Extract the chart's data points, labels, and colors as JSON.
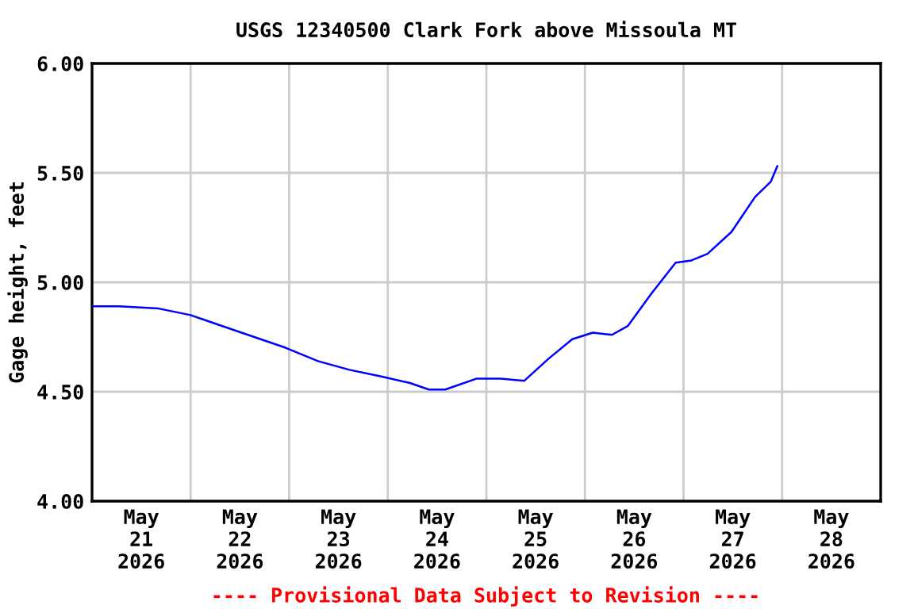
{
  "chart_data": {
    "type": "line",
    "title": "USGS 12340500 Clark Fork above Missoula MT",
    "ylabel": "Gage height, feet",
    "x": [
      "2026-05-21T00:00",
      "2026-05-21T06:30",
      "2026-05-21T16:15",
      "2026-05-22T00:00",
      "2026-05-22T07:45",
      "2026-05-22T15:30",
      "2026-05-22T23:15",
      "2026-05-23T07:00",
      "2026-05-23T14:40",
      "2026-05-23T22:25",
      "2026-05-24T05:25",
      "2026-05-24T10:00",
      "2026-05-24T14:00",
      "2026-05-24T21:40",
      "2026-05-25T03:30",
      "2026-05-25T09:15",
      "2026-05-25T15:05",
      "2026-05-25T20:55",
      "2026-05-26T01:55",
      "2026-05-26T06:35",
      "2026-05-26T10:25",
      "2026-05-26T16:15",
      "2026-05-26T22:05",
      "2026-05-27T01:55",
      "2026-05-27T05:50",
      "2026-05-27T11:40",
      "2026-05-27T17:25",
      "2026-05-27T21:15",
      "2026-05-27T22:50"
    ],
    "series": [
      {
        "color": "#0000ff",
        "values": [
          4.89,
          4.89,
          4.88,
          4.85,
          4.8,
          4.75,
          4.7,
          4.64,
          4.6,
          4.57,
          4.54,
          4.51,
          4.51,
          4.56,
          4.56,
          4.55,
          4.65,
          4.74,
          4.77,
          4.76,
          4.8,
          4.95,
          5.09,
          5.1,
          5.13,
          5.23,
          5.39,
          5.46,
          5.53
        ]
      }
    ],
    "xlim": [
      "2026-05-21T00:00",
      "2026-05-29T00:00"
    ],
    "xticks": [
      {
        "value": "2026-05-21T12:00",
        "label": "May\n21\n2026"
      },
      {
        "value": "2026-05-22T12:00",
        "label": "May\n22\n2026"
      },
      {
        "value": "2026-05-23T12:00",
        "label": "May\n23\n2026"
      },
      {
        "value": "2026-05-24T12:00",
        "label": "May\n24\n2026"
      },
      {
        "value": "2026-05-25T12:00",
        "label": "May\n25\n2026"
      },
      {
        "value": "2026-05-26T12:00",
        "label": "May\n26\n2026"
      },
      {
        "value": "2026-05-27T12:00",
        "label": "May\n27\n2026"
      },
      {
        "value": "2026-05-28T12:00",
        "label": "May\n28\n2026"
      },
      {
        "value": "2026-05-22T00:00",
        "label": null
      },
      {
        "value": "2026-05-23T00:00",
        "label": null
      },
      {
        "value": "2026-05-24T00:00",
        "label": null
      },
      {
        "value": "2026-05-25T00:00",
        "label": null
      },
      {
        "value": "2026-05-26T00:00",
        "label": null
      },
      {
        "value": "2026-05-27T00:00",
        "label": null
      },
      {
        "value": "2026-05-28T00:00",
        "label": null
      }
    ],
    "ylim": [
      4.0,
      6.0
    ],
    "yticks": [
      {
        "value": 4.0,
        "label": "4.00"
      },
      {
        "value": 4.5,
        "label": "4.50"
      },
      {
        "value": 5.0,
        "label": "5.00"
      },
      {
        "value": 5.5,
        "label": "5.50"
      },
      {
        "value": 6.0,
        "label": "6.00"
      }
    ],
    "grid": true,
    "marker": "none",
    "line_style": "solid",
    "annotations": [
      "---- Provisional Data Subject to Revision ----"
    ]
  }
}
